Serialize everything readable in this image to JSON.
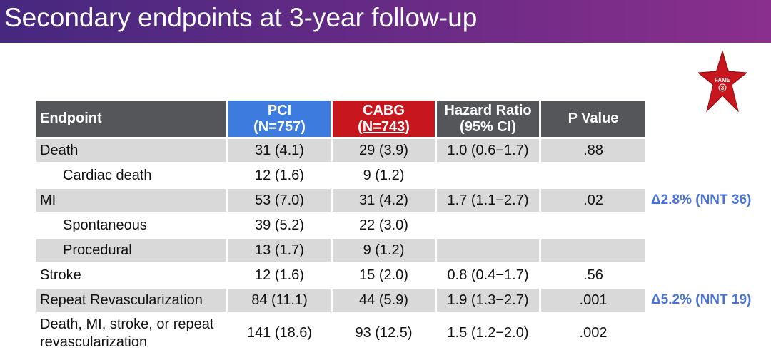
{
  "slide": {
    "title": "Secondary endpoints at 3-year follow-up",
    "logo_text": "FAME",
    "logo_number": "3",
    "colors": {
      "title_bar": "#5a2a84",
      "pci": "#3d7bdf",
      "cabg": "#c7161d",
      "header_gray": "#555659",
      "row_shade": "#d9d9d9",
      "annotation": "#4a73d9",
      "logo_star": "#c7161d"
    }
  },
  "table": {
    "headers": {
      "endpoint": "Endpoint",
      "pci_line1": "PCI",
      "pci_line2": "(N=757)",
      "cabg_line1": "CABG",
      "cabg_line2": "(N=743)",
      "hr_line1": "Hazard Ratio",
      "hr_line2": "(95% CI)",
      "pvalue": "P Value"
    },
    "rows": [
      {
        "endpoint": "Death",
        "pci": "31 (4.1)",
        "cabg": "29 (3.9)",
        "hr": "1.0 (0.6−1.7)",
        "p": ".88"
      },
      {
        "endpoint": "Cardiac death",
        "pci": "12 (1.6)",
        "cabg": "9 (1.2)",
        "hr": "",
        "p": ""
      },
      {
        "endpoint": "MI",
        "pci": "53 (7.0)",
        "cabg": "31 (4.2)",
        "hr": "1.7 (1.1−2.7)",
        "p": ".02"
      },
      {
        "endpoint": "Spontaneous",
        "pci": "39 (5.2)",
        "cabg": "22 (3.0)",
        "hr": "",
        "p": ""
      },
      {
        "endpoint": "Procedural",
        "pci": "13 (1.7)",
        "cabg": "9 (1.2)",
        "hr": "",
        "p": ""
      },
      {
        "endpoint": "Stroke",
        "pci": "12 (1.6)",
        "cabg": "15 (2.0)",
        "hr": "0.8 (0.4−1.7)",
        "p": ".56"
      },
      {
        "endpoint": "Repeat Revascularization",
        "pci": "84 (11.1)",
        "cabg": "44 (5.9)",
        "hr": "1.9 (1.3−2.7)",
        "p": ".001"
      },
      {
        "endpoint": "Death, MI, stroke, or repeat revascularization",
        "pci": "141 (18.6)",
        "cabg": "93 (12.5)",
        "hr": "1.5 (1.2−2.0)",
        "p": ".002"
      }
    ]
  },
  "annotations": {
    "mi": "Δ2.8% (NNT 36)",
    "repeat_revasc": "Δ5.2% (NNT 19)"
  }
}
